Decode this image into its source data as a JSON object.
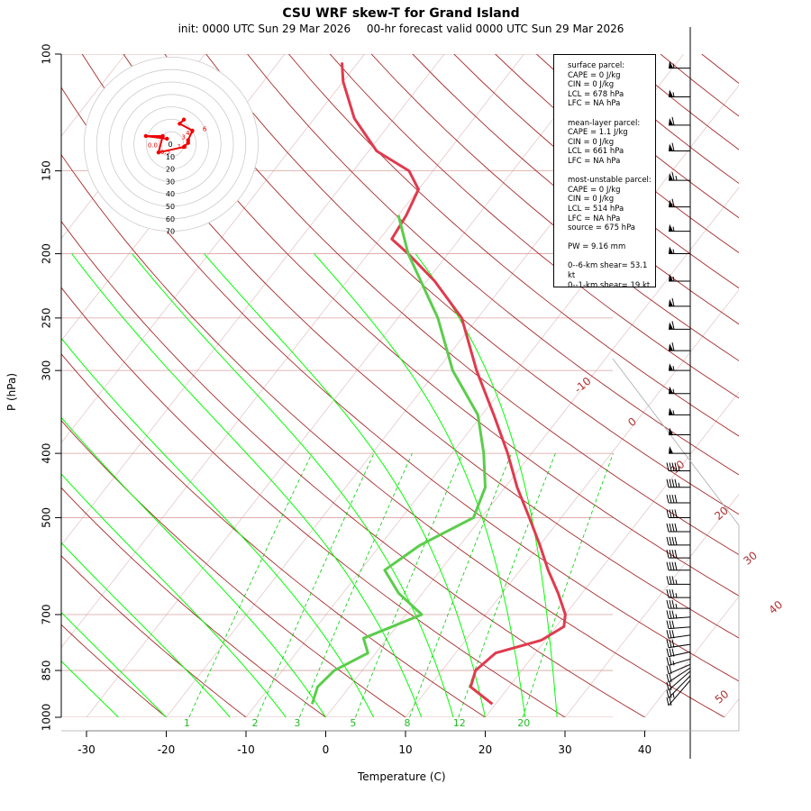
{
  "title": "CSU WRF skew-T for Grand Island",
  "init_label": "init: 0000 UTC Sun 29 Mar 2026",
  "valid_label": "00-hr forecast valid 0000 UTC Sun 29 Mar 2026",
  "info": {
    "surface_header": "surface parcel:",
    "surface_cape": "CAPE = 0 J/kg",
    "surface_cin": "CIN = 0 J/kg",
    "surface_lcl": "LCL = 678 hPa",
    "surface_lfc": "LFC = NA hPa",
    "ml_header": "mean-layer parcel:",
    "ml_cape": "CAPE = 1.1 J/kg",
    "ml_cin": "CIN = 0 J/kg",
    "ml_lcl": "LCL = 661 hPa",
    "ml_lfc": "LFC = NA hPa",
    "mu_header": "most-unstable parcel:",
    "mu_cape": "CAPE = 0 J/kg",
    "mu_cin": "CIN = 0 J/kg",
    "mu_lcl": "LCL = 514 hPa",
    "mu_lfc": "LFC = NA hPa",
    "mu_source": "source = 675 hPa",
    "pw": "PW =  9.16 mm",
    "shear_06": "0--6-km shear= 53.1 kt",
    "shear_01": "0--1-km shear= 19 kt"
  },
  "colors": {
    "temperature": "#e03a4e",
    "dewpoint": "#5ccc4c",
    "dry_adiabat": "#a52a2a",
    "moist_adiabat": "#00ff00",
    "mixing_ratio": "#00cc00",
    "isobar": "#d9a0a0",
    "isotherm": "#e6c8c8",
    "hodograph": "#ee0000"
  },
  "chart_data": {
    "type": "skew-t",
    "xlabel": "Temperature (C)",
    "ylabel": "P (hPa)",
    "xlim": [
      -33,
      51
    ],
    "ylim": [
      1000,
      100
    ],
    "x_ticks": [
      -30,
      -20,
      -10,
      0,
      10,
      20,
      30,
      40
    ],
    "p_ticks": [
      100,
      150,
      200,
      250,
      300,
      400,
      500,
      700,
      850,
      1000
    ],
    "p_tick_labels": [
      "100",
      "150",
      "200",
      "250",
      "300",
      "400",
      "500",
      "700",
      "850",
      "1000"
    ],
    "temperature_profile": [
      {
        "p": 955,
        "t": 19.6
      },
      {
        "p": 900,
        "t": 15.2
      },
      {
        "p": 850,
        "t": 14.2
      },
      {
        "p": 800,
        "t": 15.0
      },
      {
        "p": 765,
        "t": 19.5
      },
      {
        "p": 730,
        "t": 21.0
      },
      {
        "p": 700,
        "t": 20.0
      },
      {
        "p": 650,
        "t": 17.0
      },
      {
        "p": 600,
        "t": 13.5
      },
      {
        "p": 550,
        "t": 10.0
      },
      {
        "p": 500,
        "t": 6.0
      },
      {
        "p": 450,
        "t": 1.5
      },
      {
        "p": 400,
        "t": -3.0
      },
      {
        "p": 350,
        "t": -8.5
      },
      {
        "p": 300,
        "t": -15.0
      },
      {
        "p": 250,
        "t": -22.0
      },
      {
        "p": 220,
        "t": -29.0
      },
      {
        "p": 200,
        "t": -35.0
      },
      {
        "p": 190,
        "t": -38.5
      },
      {
        "p": 175,
        "t": -39.0
      },
      {
        "p": 160,
        "t": -40.0
      },
      {
        "p": 150,
        "t": -43.0
      },
      {
        "p": 140,
        "t": -49.0
      },
      {
        "p": 125,
        "t": -55.0
      },
      {
        "p": 110,
        "t": -60.0
      },
      {
        "p": 103,
        "t": -62.0
      }
    ],
    "dewpoint_profile": [
      {
        "p": 955,
        "t": -3.0
      },
      {
        "p": 900,
        "t": -4.0
      },
      {
        "p": 850,
        "t": -3.5
      },
      {
        "p": 800,
        "t": -1.0
      },
      {
        "p": 760,
        "t": -3.0
      },
      {
        "p": 700,
        "t": 2.0
      },
      {
        "p": 650,
        "t": -3.0
      },
      {
        "p": 600,
        "t": -7.0
      },
      {
        "p": 550,
        "t": -5.0
      },
      {
        "p": 500,
        "t": -1.0
      },
      {
        "p": 450,
        "t": -2.5
      },
      {
        "p": 400,
        "t": -6.0
      },
      {
        "p": 350,
        "t": -10.5
      },
      {
        "p": 300,
        "t": -18.0
      },
      {
        "p": 250,
        "t": -25.0
      },
      {
        "p": 200,
        "t": -35.0
      },
      {
        "p": 175,
        "t": -40.0
      }
    ],
    "dry_adiabats_theta_K": [
      -20,
      -10,
      0,
      10,
      20,
      30,
      40,
      50,
      60,
      70,
      80,
      90,
      100,
      110,
      120,
      130,
      140,
      150,
      160,
      170,
      180,
      190,
      200,
      210,
      220
    ],
    "dry_adiabat_labels": [
      {
        "text": "-10",
        "p": 325,
        "t": 0
      },
      {
        "text": "0",
        "p": 365,
        "t": 10
      },
      {
        "text": "10",
        "p": 430,
        "t": 20
      },
      {
        "text": "20",
        "p": 505,
        "t": 30
      },
      {
        "text": "30",
        "p": 590,
        "t": 38
      },
      {
        "text": "40",
        "p": 700,
        "t": 46
      },
      {
        "text": "50",
        "p": 955,
        "t": 48
      }
    ],
    "moist_adiabats_thetaw_C": [
      -26,
      -20,
      -12,
      -5,
      0,
      6,
      12,
      16,
      20,
      25,
      29
    ],
    "mixing_ratios_gkg": [
      1,
      2,
      3,
      5,
      8,
      12,
      20
    ],
    "hodograph": {
      "rings_kt": [
        10,
        20,
        30,
        40,
        50,
        60,
        70
      ],
      "points_kt": [
        {
          "u": 3,
          "v": 14
        },
        {
          "u": 2,
          "v": 11
        },
        {
          "u": 5,
          "v": 6
        },
        {
          "u": 4,
          "v": -1
        },
        {
          "u": 4,
          "v": -3
        },
        {
          "u": 3,
          "v": -6
        },
        {
          "u": -3,
          "v": -10
        },
        {
          "u": -2,
          "v": 2
        },
        {
          "u": -6,
          "v": 2
        },
        {
          "u": -1,
          "v": 0
        }
      ],
      "labels": [
        {
          "text": "6",
          "u": 7,
          "v": 7
        },
        {
          "text": "5",
          "u": 4,
          "v": 5
        },
        {
          "text": "4",
          "u": 3,
          "v": 4
        },
        {
          "text": "3",
          "u": 2,
          "v": 1
        },
        {
          "text": "1.5",
          "u": 1,
          "v": -6
        },
        {
          "text": "0.5",
          "u": -3,
          "v": -10
        },
        {
          "text": "0.0",
          "u": -6,
          "v": -5
        }
      ]
    },
    "wind_barbs": [
      {
        "p": 960,
        "speed": 20,
        "dir": 190
      },
      {
        "p": 935,
        "speed": 25,
        "dir": 200
      },
      {
        "p": 910,
        "speed": 20,
        "dir": 210
      },
      {
        "p": 885,
        "speed": 20,
        "dir": 225
      },
      {
        "p": 860,
        "speed": 20,
        "dir": 240
      },
      {
        "p": 835,
        "speed": 25,
        "dir": 250
      },
      {
        "p": 810,
        "speed": 30,
        "dir": 255
      },
      {
        "p": 785,
        "speed": 30,
        "dir": 260
      },
      {
        "p": 760,
        "speed": 30,
        "dir": 260
      },
      {
        "p": 735,
        "speed": 30,
        "dir": 265
      },
      {
        "p": 710,
        "speed": 35,
        "dir": 265
      },
      {
        "p": 685,
        "speed": 35,
        "dir": 270
      },
      {
        "p": 660,
        "speed": 35,
        "dir": 270
      },
      {
        "p": 630,
        "speed": 35,
        "dir": 270
      },
      {
        "p": 600,
        "speed": 40,
        "dir": 270
      },
      {
        "p": 575,
        "speed": 40,
        "dir": 270
      },
      {
        "p": 550,
        "speed": 40,
        "dir": 270
      },
      {
        "p": 525,
        "speed": 40,
        "dir": 270
      },
      {
        "p": 500,
        "speed": 40,
        "dir": 270
      },
      {
        "p": 475,
        "speed": 40,
        "dir": 270
      },
      {
        "p": 450,
        "speed": 45,
        "dir": 270
      },
      {
        "p": 425,
        "speed": 45,
        "dir": 270
      },
      {
        "p": 400,
        "speed": 50,
        "dir": 270
      },
      {
        "p": 375,
        "speed": 50,
        "dir": 270
      },
      {
        "p": 350,
        "speed": 55,
        "dir": 270
      },
      {
        "p": 325,
        "speed": 55,
        "dir": 270
      },
      {
        "p": 300,
        "speed": 55,
        "dir": 270
      },
      {
        "p": 280,
        "speed": 60,
        "dir": 270
      },
      {
        "p": 260,
        "speed": 60,
        "dir": 270
      },
      {
        "p": 240,
        "speed": 60,
        "dir": 270
      },
      {
        "p": 220,
        "speed": 55,
        "dir": 270
      },
      {
        "p": 200,
        "speed": 55,
        "dir": 270
      },
      {
        "p": 185,
        "speed": 55,
        "dir": 270
      },
      {
        "p": 170,
        "speed": 60,
        "dir": 270
      },
      {
        "p": 155,
        "speed": 65,
        "dir": 270
      },
      {
        "p": 140,
        "speed": 60,
        "dir": 270
      },
      {
        "p": 128,
        "speed": 60,
        "dir": 270
      },
      {
        "p": 116,
        "speed": 55,
        "dir": 270
      },
      {
        "p": 105,
        "speed": 55,
        "dir": 270
      }
    ]
  }
}
